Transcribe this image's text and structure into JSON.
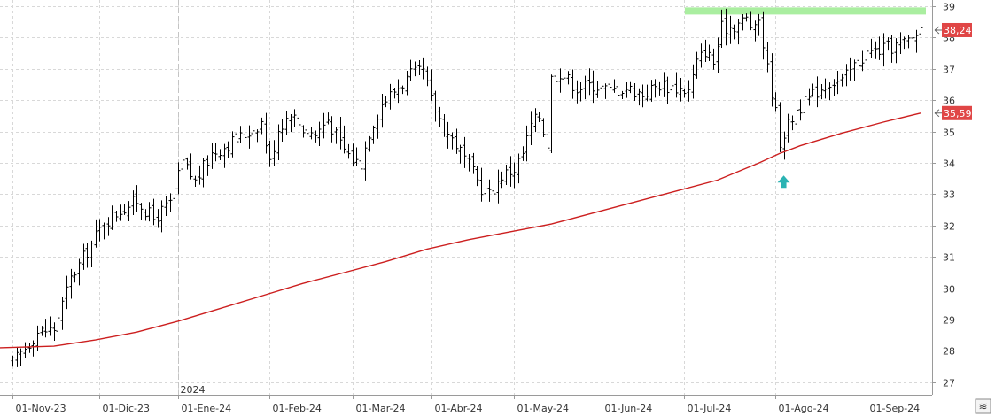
{
  "chart_data": {
    "type": "bar",
    "subtype": "ohlc",
    "title": "",
    "xlabel": "",
    "ylabel": "",
    "ylim": [
      26.6,
      39.2
    ],
    "y_ticks": [
      "27",
      "28",
      "29",
      "30",
      "31",
      "32",
      "33",
      "34",
      "35",
      "36",
      "37",
      "38",
      "39"
    ],
    "x_ticks": [
      {
        "label": "01-Nov-23",
        "index": 0
      },
      {
        "label": "01-Dic-23",
        "index": 21
      },
      {
        "label": "01-Ene-24",
        "index": 40
      },
      {
        "label": "01-Feb-24",
        "index": 62
      },
      {
        "label": "01-Mar-24",
        "index": 82
      },
      {
        "label": "01-Abr-24",
        "index": 101
      },
      {
        "label": "01-May-24",
        "index": 121
      },
      {
        "label": "01-Jun-24",
        "index": 142
      },
      {
        "label": "01-Jul-24",
        "index": 162
      },
      {
        "label": "01-Ago-24",
        "index": 184
      },
      {
        "label": "01-Sep-24",
        "index": 206
      }
    ],
    "year_label": {
      "text": "2024",
      "index": 40
    },
    "total_sessions": 220,
    "price_path": [
      [
        0,
        27.6
      ],
      [
        3,
        28.1
      ],
      [
        6,
        28.6
      ],
      [
        10,
        28.7
      ],
      [
        14,
        30.3
      ],
      [
        18,
        31.2
      ],
      [
        22,
        32.1
      ],
      [
        26,
        32.5
      ],
      [
        30,
        32.8
      ],
      [
        34,
        32.2
      ],
      [
        38,
        32.7
      ],
      [
        41,
        34.0
      ],
      [
        44,
        33.4
      ],
      [
        48,
        34.3
      ],
      [
        52,
        34.6
      ],
      [
        56,
        34.9
      ],
      [
        60,
        35.3
      ],
      [
        62,
        34.0
      ],
      [
        64,
        35.1
      ],
      [
        67,
        35.6
      ],
      [
        70,
        35.1
      ],
      [
        73,
        34.9
      ],
      [
        76,
        35.4
      ],
      [
        79,
        34.6
      ],
      [
        82,
        34.1
      ],
      [
        84,
        34.0
      ],
      [
        86,
        35.0
      ],
      [
        89,
        35.9
      ],
      [
        92,
        36.3
      ],
      [
        96,
        36.8
      ],
      [
        99,
        36.9
      ],
      [
        101,
        36.0
      ],
      [
        104,
        35.1
      ],
      [
        107,
        34.6
      ],
      [
        110,
        33.9
      ],
      [
        113,
        33.2
      ],
      [
        115,
        33.0
      ],
      [
        118,
        33.6
      ],
      [
        121,
        33.8
      ],
      [
        123,
        34.3
      ],
      [
        125,
        35.2
      ],
      [
        127,
        35.5
      ],
      [
        129,
        34.6
      ],
      [
        130,
        36.7
      ],
      [
        132,
        36.9
      ],
      [
        136,
        36.4
      ],
      [
        140,
        36.5
      ],
      [
        144,
        36.3
      ],
      [
        148,
        36.4
      ],
      [
        152,
        36.2
      ],
      [
        156,
        36.5
      ],
      [
        160,
        36.4
      ],
      [
        163,
        36.3
      ],
      [
        165,
        37.2
      ],
      [
        167,
        37.6
      ],
      [
        169,
        37.2
      ],
      [
        171,
        38.3
      ],
      [
        174,
        38.4
      ],
      [
        177,
        38.6
      ],
      [
        179,
        38.2
      ],
      [
        180,
        38.6
      ],
      [
        182,
        37.0
      ],
      [
        184,
        35.6
      ],
      [
        185,
        34.7
      ],
      [
        187,
        35.2
      ],
      [
        189,
        35.7
      ],
      [
        191,
        35.9
      ],
      [
        194,
        36.3
      ],
      [
        197,
        36.6
      ],
      [
        200,
        36.6
      ],
      [
        203,
        37.1
      ],
      [
        206,
        37.5
      ],
      [
        209,
        37.6
      ],
      [
        212,
        37.7
      ],
      [
        215,
        37.8
      ],
      [
        217,
        38.0
      ],
      [
        219,
        38.3
      ]
    ],
    "series": [
      {
        "id": "price",
        "type": "ohlc",
        "color": "#000000",
        "last_value_label": "38,24",
        "last_value": 38.24
      },
      {
        "id": "moving-average",
        "type": "line",
        "color": "#cc1f1f",
        "last_value_label": "35,59",
        "last_value": 35.59,
        "points": [
          [
            0,
            28.1
          ],
          [
            10,
            28.15
          ],
          [
            20,
            28.35
          ],
          [
            30,
            28.6
          ],
          [
            40,
            28.95
          ],
          [
            50,
            29.35
          ],
          [
            60,
            29.75
          ],
          [
            70,
            30.15
          ],
          [
            80,
            30.5
          ],
          [
            90,
            30.85
          ],
          [
            100,
            31.25
          ],
          [
            110,
            31.55
          ],
          [
            120,
            31.8
          ],
          [
            130,
            32.05
          ],
          [
            140,
            32.4
          ],
          [
            150,
            32.75
          ],
          [
            160,
            33.1
          ],
          [
            170,
            33.45
          ],
          [
            180,
            34.0
          ],
          [
            185,
            34.3
          ],
          [
            190,
            34.55
          ],
          [
            200,
            34.95
          ],
          [
            210,
            35.3
          ],
          [
            219,
            35.59
          ]
        ]
      }
    ],
    "annotations": {
      "resistance_band": {
        "color": "#aaeea0",
        "from_index": 163,
        "to_index": 219,
        "y": 38.85
      },
      "arrow": {
        "color": "#2ab3b3",
        "direction": "up",
        "index": 186,
        "y_top": 33.6
      }
    },
    "grid": true,
    "legend": "none"
  },
  "corner_button": {
    "icon": "collapse-arrows-icon",
    "glyph": "≋"
  }
}
